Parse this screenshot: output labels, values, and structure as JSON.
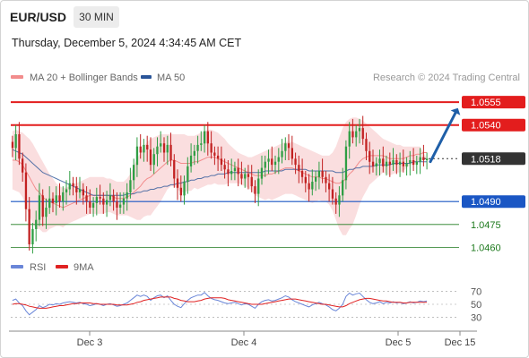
{
  "header": {
    "symbol": "EUR/USD",
    "timeframe": "30 MIN",
    "datetime": "Thursday, December 5, 2024 4:34:45 AM CET"
  },
  "colors": {
    "bollinger_band": "#f5b5b8",
    "ma20": "#f28c8c",
    "ma50": "#2a5599",
    "resistance": "#e31d1d",
    "support_blue": "#1a56c4",
    "support_green": "#1e7a1e",
    "current_price": "#333333",
    "arrow": "#1f5fa8",
    "candle_up": "#2f9e44",
    "candle_down": "#c22222",
    "rsi": "#6a86d8",
    "rsi_ma": "#e02222"
  },
  "chart_data": [
    {
      "type": "candlestick",
      "legend": [
        {
          "label": "MA 20 + Bollinger Bands",
          "color": "#f28c8c"
        },
        {
          "label": "MA 50",
          "color": "#2a5599"
        }
      ],
      "watermark": "Research © 2024 Trading Central",
      "ylim": [
        1.0455,
        1.0565
      ],
      "x_tick_labels": [
        "Dec 3",
        "Dec 4",
        "Dec 5",
        "Dec 15"
      ],
      "levels": [
        {
          "value": 1.0555,
          "label": "1.0555",
          "kind": "resistance"
        },
        {
          "value": 1.054,
          "label": "1.0540",
          "kind": "resistance"
        },
        {
          "value": 1.0518,
          "label": "1.0518",
          "kind": "current"
        },
        {
          "value": 1.049,
          "label": "1.0490",
          "kind": "support-blue"
        },
        {
          "value": 1.0475,
          "label": "1.0475",
          "kind": "support-green"
        },
        {
          "value": 1.046,
          "label": "1.0460",
          "kind": "support-green"
        }
      ],
      "projection": {
        "from": 1.0516,
        "to": 1.0548
      },
      "close": [
        1.0525,
        1.0534,
        1.0518,
        1.0509,
        1.0485,
        1.0462,
        1.0472,
        1.0478,
        1.0494,
        1.048,
        1.0486,
        1.0492,
        1.0489,
        1.0494,
        1.049,
        1.0496,
        1.0498,
        1.0502,
        1.05,
        1.0496,
        1.0498,
        1.0494,
        1.049,
        1.0486,
        1.0489,
        1.0493,
        1.0492,
        1.0488,
        1.0491,
        1.0494,
        1.049,
        1.0486,
        1.0488,
        1.0492,
        1.0496,
        1.0504,
        1.0514,
        1.0526,
        1.0522,
        1.0527,
        1.0524,
        1.0514,
        1.0521,
        1.0526,
        1.0528,
        1.0522,
        1.0527,
        1.0517,
        1.0505,
        1.0499,
        1.0494,
        1.0503,
        1.0513,
        1.052,
        1.0523,
        1.0527,
        1.0528,
        1.0536,
        1.0528,
        1.0522,
        1.052,
        1.0518,
        1.0514,
        1.0511,
        1.0508,
        1.051,
        1.0512,
        1.0508,
        1.0505,
        1.0508,
        1.0506,
        1.05,
        1.0495,
        1.0505,
        1.0512,
        1.0516,
        1.0518,
        1.0514,
        1.0516,
        1.0519,
        1.0523,
        1.0528,
        1.0525,
        1.0518,
        1.0514,
        1.051,
        1.0506,
        1.0502,
        1.0498,
        1.0503,
        1.0506,
        1.051,
        1.0506,
        1.0502,
        1.0498,
        1.0492,
        1.0488,
        1.0494,
        1.0504,
        1.0526,
        1.0536,
        1.0532,
        1.0536,
        1.0538,
        1.0531,
        1.0523,
        1.0516,
        1.0513,
        1.0515,
        1.0518,
        1.0513,
        1.0516,
        1.0514,
        1.0517,
        1.0514,
        1.0516,
        1.0513,
        1.0515,
        1.0517,
        1.0514,
        1.0516,
        1.0519,
        1.0517,
        1.0518
      ],
      "ma20": [
        1.0517,
        1.0517,
        1.0516,
        1.0514,
        1.051,
        1.0506,
        1.0502,
        1.0498,
        1.0496,
        1.0493,
        1.0491,
        1.049,
        1.0489,
        1.0488,
        1.0487,
        1.0486,
        1.0487,
        1.0488,
        1.0489,
        1.049,
        1.0491,
        1.0492,
        1.0493,
        1.0494,
        1.0494,
        1.0494,
        1.0494,
        1.0494,
        1.0494,
        1.0494,
        1.0493,
        1.0492,
        1.0492,
        1.0492,
        1.0493,
        1.0494,
        1.0496,
        1.0498,
        1.05,
        1.0503,
        1.0505,
        1.0506,
        1.0508,
        1.051,
        1.0512,
        1.0514,
        1.0516,
        1.0517,
        1.0517,
        1.0516,
        1.0515,
        1.0515,
        1.0515,
        1.0515,
        1.0516,
        1.0516,
        1.0517,
        1.0518,
        1.0519,
        1.0519,
        1.0519,
        1.0518,
        1.0517,
        1.0516,
        1.0515,
        1.0514,
        1.0513,
        1.0512,
        1.0511,
        1.051,
        1.0509,
        1.0508,
        1.0507,
        1.0507,
        1.0507,
        1.0507,
        1.0508,
        1.0508,
        1.0509,
        1.051,
        1.0511,
        1.0512,
        1.0512,
        1.0512,
        1.0511,
        1.051,
        1.0509,
        1.0508,
        1.0507,
        1.0506,
        1.0506,
        1.0506,
        1.0505,
        1.0505,
        1.0504,
        1.0503,
        1.0502,
        1.0502,
        1.0503,
        1.0505,
        1.0508,
        1.051,
        1.0513,
        1.0516,
        1.0518,
        1.0519,
        1.052,
        1.052,
        1.052,
        1.052,
        1.052,
        1.0519,
        1.0518,
        1.0518,
        1.0518,
        1.0518,
        1.0518,
        1.0519,
        1.052,
        1.052,
        1.0521,
        1.0521,
        1.0522,
        1.0522
      ],
      "band_upper": [
        1.0536,
        1.0537,
        1.0536,
        1.0535,
        1.0533,
        1.0531,
        1.0528,
        1.0524,
        1.052,
        1.0516,
        1.0512,
        1.0508,
        1.0505,
        1.0502,
        1.05,
        1.0499,
        1.0499,
        1.05,
        1.0501,
        1.0502,
        1.0503,
        1.0504,
        1.0505,
        1.0506,
        1.0506,
        1.0506,
        1.0506,
        1.0506,
        1.0505,
        1.0505,
        1.0504,
        1.0503,
        1.0503,
        1.0503,
        1.0505,
        1.0508,
        1.0513,
        1.0518,
        1.0522,
        1.0526,
        1.0529,
        1.0531,
        1.0532,
        1.0533,
        1.0534,
        1.0534,
        1.0534,
        1.0534,
        1.0534,
        1.0534,
        1.0534,
        1.0534,
        1.0533,
        1.0533,
        1.0533,
        1.0534,
        1.0535,
        1.0536,
        1.0537,
        1.0537,
        1.0536,
        1.0535,
        1.0533,
        1.0531,
        1.0528,
        1.0526,
        1.0524,
        1.0522,
        1.0521,
        1.052,
        1.0519,
        1.0519,
        1.052,
        1.0521,
        1.0522,
        1.0523,
        1.0524,
        1.0525,
        1.0526,
        1.0527,
        1.0528,
        1.0529,
        1.0529,
        1.0529,
        1.0528,
        1.0527,
        1.0526,
        1.0525,
        1.0524,
        1.0523,
        1.0522,
        1.0521,
        1.052,
        1.052,
        1.052,
        1.0522,
        1.0526,
        1.0532,
        1.0538,
        1.0542,
        1.0544,
        1.0545,
        1.0545,
        1.0544,
        1.0543,
        1.0541,
        1.0539,
        1.0537,
        1.0535,
        1.0533,
        1.0531,
        1.053,
        1.0529,
        1.0528,
        1.0527,
        1.0527,
        1.0526,
        1.0526,
        1.0526,
        1.0526,
        1.0526,
        1.0526
      ],
      "band_lower": [
        1.0498,
        1.0497,
        1.0496,
        1.0493,
        1.0487,
        1.0481,
        1.0476,
        1.0472,
        1.0472,
        1.047,
        1.047,
        1.0472,
        1.0473,
        1.0474,
        1.0474,
        1.0473,
        1.0475,
        1.0476,
        1.0477,
        1.0478,
        1.0479,
        1.048,
        1.0481,
        1.0482,
        1.0482,
        1.0482,
        1.0482,
        1.0482,
        1.0483,
        1.0483,
        1.0482,
        1.0481,
        1.0481,
        1.0481,
        1.0481,
        1.048,
        1.0479,
        1.0478,
        1.0478,
        1.048,
        1.0481,
        1.0481,
        1.0484,
        1.0487,
        1.049,
        1.0494,
        1.0498,
        1.05,
        1.05,
        1.0498,
        1.0496,
        1.0496,
        1.0497,
        1.0497,
        1.0499,
        1.0498,
        1.0499,
        1.05,
        1.0501,
        1.0501,
        1.0502,
        1.0501,
        1.0501,
        1.0501,
        1.0502,
        1.0502,
        1.0502,
        1.0502,
        1.0501,
        1.05,
        1.0499,
        1.0497,
        1.0494,
        1.0493,
        1.0492,
        1.0491,
        1.0492,
        1.0491,
        1.0492,
        1.0493,
        1.0494,
        1.0495,
        1.0495,
        1.0495,
        1.0494,
        1.0493,
        1.0492,
        1.0491,
        1.049,
        1.0489,
        1.049,
        1.0491,
        1.049,
        1.049,
        1.0488,
        1.0484,
        1.0478,
        1.0472,
        1.0468,
        1.0468,
        1.0472,
        1.0475,
        1.0481,
        1.0488,
        1.0493,
        1.0497,
        1.0501,
        1.0503,
        1.0505,
        1.0507,
        1.0509,
        1.0508,
        1.0507,
        1.0508,
        1.0509,
        1.0509,
        1.051,
        1.0512,
        1.0514,
        1.0514,
        1.0516,
        1.0516,
        1.0518,
        1.0518
      ],
      "ma50": [
        1.0524,
        1.0523,
        1.0522,
        1.0521,
        1.0519,
        1.0517,
        1.0515,
        1.0513,
        1.0511,
        1.0509,
        1.0508,
        1.0507,
        1.0506,
        1.0505,
        1.0504,
        1.0503,
        1.0502,
        1.0501,
        1.05,
        1.0499,
        1.0498,
        1.0497,
        1.0496,
        1.0495,
        1.0494,
        1.0494,
        1.0494,
        1.0494,
        1.0494,
        1.0494,
        1.0494,
        1.0494,
        1.0494,
        1.0494,
        1.0495,
        1.0495,
        1.0495,
        1.0496,
        1.0496,
        1.0497,
        1.0497,
        1.0498,
        1.0498,
        1.0499,
        1.0499,
        1.05,
        1.05,
        1.0501,
        1.0501,
        1.0502,
        1.0502,
        1.0503,
        1.0503,
        1.0504,
        1.0504,
        1.0505,
        1.0505,
        1.0506,
        1.0506,
        1.0507,
        1.0507,
        1.0508,
        1.0508,
        1.0508,
        1.0509,
        1.0509,
        1.0509,
        1.0509,
        1.0509,
        1.0509,
        1.0509,
        1.0509,
        1.0509,
        1.0509,
        1.0509,
        1.051,
        1.051,
        1.051,
        1.051,
        1.051,
        1.051,
        1.0511,
        1.0511,
        1.0511,
        1.0511,
        1.0511,
        1.0511,
        1.0511,
        1.051,
        1.051,
        1.051,
        1.051,
        1.051,
        1.051,
        1.051,
        1.051,
        1.0509,
        1.0509,
        1.0509,
        1.051,
        1.0511,
        1.0511,
        1.0512,
        1.0512,
        1.0513,
        1.0513,
        1.0513,
        1.0513,
        1.0514,
        1.0514,
        1.0514,
        1.0514,
        1.0514,
        1.0515,
        1.0515,
        1.0515,
        1.0515,
        1.0515,
        1.0515,
        1.0516,
        1.0516,
        1.0516,
        1.0516,
        1.0516
      ]
    },
    {
      "type": "line",
      "legend": [
        {
          "label": "RSI",
          "color": "#6a86d8"
        },
        {
          "label": "9MA",
          "color": "#e02222"
        }
      ],
      "ylim": [
        20,
        80
      ],
      "y_tick_labels": [
        "70",
        "50",
        "30"
      ],
      "rsi": [
        56,
        58,
        52,
        48,
        40,
        34,
        38,
        42,
        48,
        45,
        47,
        50,
        49,
        51,
        50,
        52,
        53,
        54,
        53,
        52,
        53,
        51,
        50,
        48,
        49,
        51,
        50,
        48,
        50,
        51,
        49,
        47,
        48,
        50,
        52,
        56,
        60,
        64,
        62,
        64,
        62,
        56,
        60,
        63,
        64,
        60,
        63,
        56,
        50,
        47,
        45,
        51,
        56,
        60,
        62,
        64,
        64,
        68,
        63,
        59,
        57,
        56,
        54,
        52,
        51,
        52,
        53,
        51,
        49,
        51,
        50,
        47,
        44,
        50,
        54,
        56,
        57,
        55,
        56,
        58,
        60,
        63,
        61,
        57,
        54,
        52,
        50,
        48,
        46,
        49,
        51,
        53,
        51,
        49,
        46,
        42,
        40,
        44,
        50,
        62,
        67,
        64,
        66,
        67,
        62,
        57,
        53,
        51,
        52,
        54,
        51,
        53,
        52,
        54,
        52,
        53,
        51,
        52,
        54,
        52,
        53,
        55,
        54,
        55
      ],
      "rsi_ma": [
        50,
        51,
        51,
        50,
        49,
        47,
        46,
        45,
        44,
        44,
        44,
        45,
        46,
        47,
        48,
        48,
        49,
        50,
        51,
        51,
        52,
        52,
        52,
        52,
        51,
        51,
        50,
        50,
        50,
        50,
        50,
        49,
        49,
        49,
        49,
        50,
        51,
        53,
        54,
        56,
        57,
        58,
        59,
        60,
        61,
        61,
        61,
        61,
        59,
        58,
        56,
        55,
        54,
        54,
        54,
        55,
        56,
        58,
        59,
        60,
        60,
        60,
        60,
        59,
        57,
        56,
        55,
        54,
        53,
        52,
        51,
        50,
        50,
        50,
        50,
        51,
        52,
        53,
        54,
        55,
        56,
        57,
        58,
        58,
        58,
        57,
        56,
        55,
        54,
        53,
        52,
        51,
        50,
        50,
        49,
        48,
        47,
        46,
        46,
        48,
        51,
        53,
        55,
        57,
        58,
        59,
        59,
        58,
        57,
        56,
        55,
        55,
        54,
        53,
        53,
        53,
        52,
        52,
        53,
        53,
        53,
        53,
        53,
        53
      ]
    }
  ]
}
